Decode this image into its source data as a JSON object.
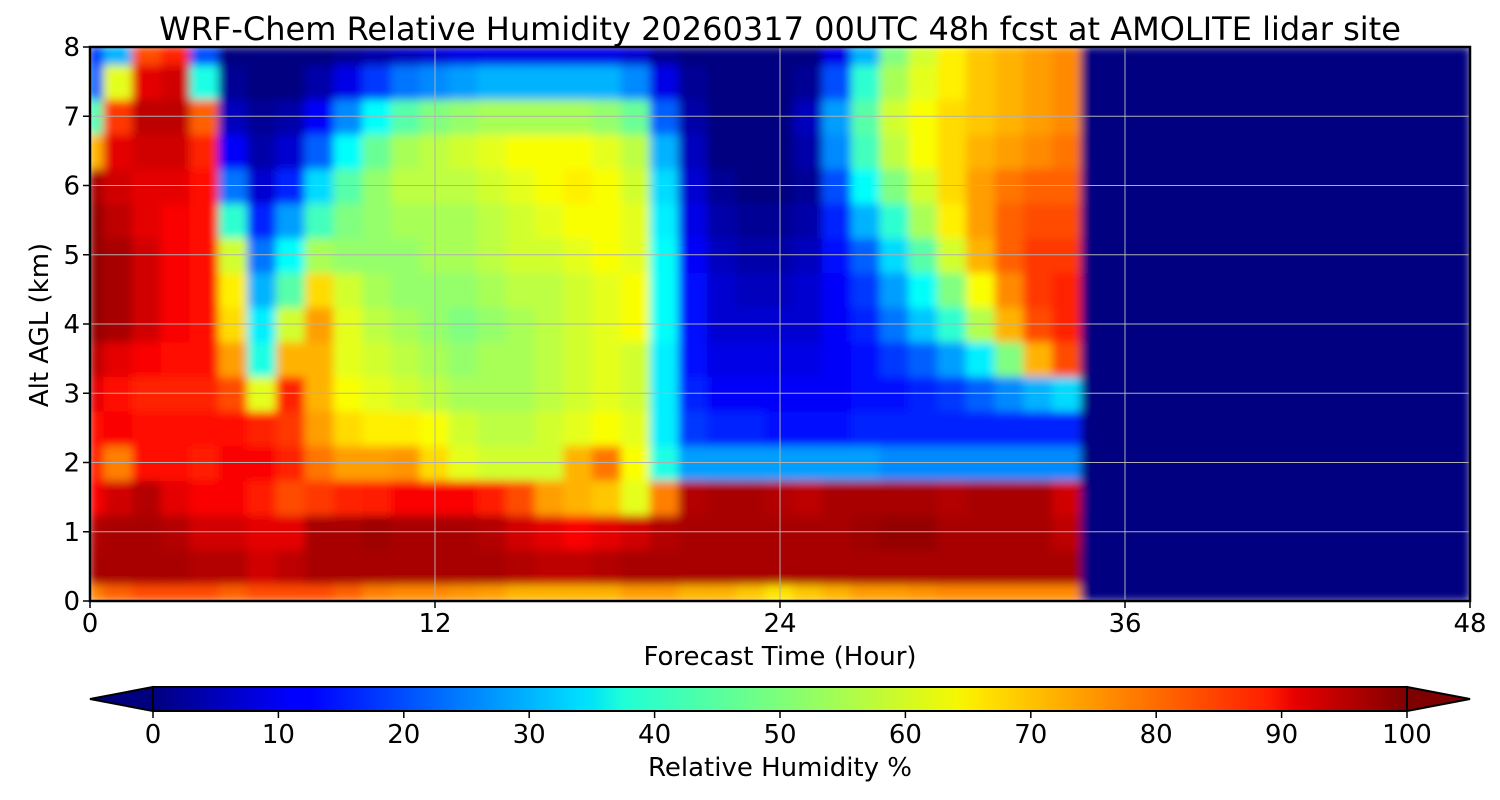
{
  "chart_data": {
    "type": "heatmap",
    "title": "WRF-Chem Relative Humidity 20260317 00UTC 48h fcst at AMOLITE lidar site",
    "xlabel": "Forecast Time (Hour)",
    "ylabel": "Alt AGL (km)",
    "xlim": [
      0,
      48
    ],
    "ylim": [
      0,
      8
    ],
    "xticks": [
      "0",
      "12",
      "24",
      "36",
      "48"
    ],
    "yticks": [
      "0",
      "1",
      "2",
      "3",
      "4",
      "5",
      "6",
      "7",
      "8"
    ],
    "grid": true,
    "colormap": "jet",
    "colorbar": {
      "label": "Relative Humidity %",
      "range": [
        0,
        100
      ],
      "ticks": [
        "0",
        "10",
        "20",
        "30",
        "40",
        "50",
        "60",
        "70",
        "80",
        "90",
        "100"
      ],
      "extend": "both",
      "orientation": "horizontal"
    },
    "x": [
      0,
      1,
      2,
      3,
      4,
      5,
      6,
      7,
      8,
      9,
      10,
      11,
      12,
      13,
      14,
      15,
      16,
      17,
      18,
      19,
      20,
      21,
      22,
      23,
      24,
      25,
      26,
      27,
      28,
      29,
      30,
      31,
      32,
      33,
      34,
      35,
      36,
      37,
      38,
      39,
      40,
      41,
      42,
      43,
      44,
      45,
      46,
      47,
      48
    ],
    "y": [
      0,
      0.5,
      1,
      1.5,
      2,
      2.5,
      3,
      3.5,
      4,
      4.5,
      5,
      5.5,
      6,
      6.5,
      7,
      7.5,
      8
    ],
    "z_note": "rows correspond to y (km), columns to x (hours); values are relative humidity in %",
    "z": [
      [
        75,
        78,
        80,
        80,
        80,
        78,
        80,
        80,
        80,
        78,
        75,
        74,
        74,
        73,
        72,
        70,
        70,
        70,
        70,
        72,
        72,
        70,
        70,
        68,
        65,
        68,
        70,
        72,
        72,
        73,
        74,
        74,
        74,
        74,
        74,
        0,
        0,
        0,
        0,
        0,
        0,
        0,
        0,
        0,
        0,
        0,
        0,
        0,
        0
      ],
      [
        96,
        96,
        96,
        96,
        95,
        95,
        92,
        94,
        96,
        96,
        96,
        96,
        96,
        96,
        96,
        95,
        94,
        94,
        95,
        96,
        96,
        96,
        96,
        96,
        96,
        96,
        96,
        96,
        96,
        96,
        96,
        96,
        96,
        96,
        96,
        0,
        0,
        0,
        0,
        0,
        0,
        0,
        0,
        0,
        0,
        0,
        0,
        0,
        0
      ],
      [
        95,
        96,
        96,
        95,
        92,
        92,
        90,
        90,
        96,
        96,
        97,
        96,
        96,
        96,
        95,
        92,
        90,
        88,
        90,
        92,
        95,
        96,
        96,
        96,
        96,
        96,
        96,
        97,
        98,
        98,
        96,
        96,
        96,
        96,
        94,
        0,
        0,
        0,
        0,
        0,
        0,
        0,
        0,
        0,
        0,
        0,
        0,
        0,
        0
      ],
      [
        88,
        92,
        95,
        90,
        88,
        88,
        85,
        80,
        82,
        84,
        85,
        88,
        88,
        88,
        85,
        80,
        72,
        70,
        68,
        60,
        75,
        95,
        96,
        96,
        95,
        94,
        96,
        96,
        96,
        96,
        95,
        96,
        96,
        96,
        92,
        0,
        0,
        0,
        0,
        0,
        0,
        0,
        0,
        0,
        0,
        0,
        0,
        0,
        0
      ],
      [
        85,
        75,
        86,
        86,
        85,
        88,
        88,
        84,
        76,
        72,
        72,
        73,
        66,
        60,
        58,
        58,
        58,
        70,
        76,
        62,
        40,
        28,
        28,
        28,
        28,
        28,
        28,
        28,
        26,
        26,
        26,
        26,
        26,
        26,
        26,
        0,
        0,
        0,
        0,
        0,
        0,
        0,
        0,
        0,
        0,
        0,
        0,
        0,
        0
      ],
      [
        86,
        88,
        86,
        86,
        86,
        86,
        84,
        82,
        72,
        66,
        64,
        64,
        62,
        58,
        56,
        56,
        58,
        60,
        62,
        60,
        36,
        18,
        16,
        16,
        14,
        14,
        14,
        16,
        16,
        16,
        16,
        16,
        16,
        16,
        16,
        0,
        0,
        0,
        0,
        0,
        0,
        0,
        0,
        0,
        0,
        0,
        0,
        0,
        0
      ],
      [
        90,
        86,
        84,
        84,
        84,
        80,
        60,
        84,
        70,
        62,
        60,
        58,
        56,
        54,
        54,
        54,
        56,
        58,
        60,
        58,
        36,
        16,
        12,
        12,
        12,
        12,
        12,
        14,
        14,
        16,
        18,
        22,
        26,
        30,
        34,
        0,
        0,
        0,
        0,
        0,
        0,
        0,
        0,
        0,
        0,
        0,
        0,
        0,
        0
      ],
      [
        94,
        90,
        88,
        86,
        86,
        72,
        40,
        70,
        70,
        60,
        58,
        56,
        54,
        52,
        54,
        54,
        56,
        58,
        60,
        58,
        36,
        14,
        10,
        10,
        10,
        10,
        12,
        14,
        18,
        22,
        28,
        36,
        50,
        70,
        80,
        0,
        0,
        0,
        0,
        0,
        0,
        0,
        0,
        0,
        0,
        0,
        0,
        0,
        0
      ],
      [
        98,
        96,
        92,
        88,
        86,
        66,
        36,
        58,
        72,
        60,
        56,
        54,
        52,
        50,
        52,
        54,
        56,
        58,
        60,
        62,
        38,
        14,
        8,
        8,
        8,
        8,
        12,
        16,
        24,
        32,
        42,
        55,
        70,
        80,
        84,
        0,
        0,
        0,
        0,
        0,
        0,
        0,
        0,
        0,
        0,
        0,
        0,
        0,
        0
      ],
      [
        98,
        96,
        92,
        88,
        86,
        64,
        30,
        46,
        66,
        58,
        54,
        52,
        52,
        52,
        54,
        56,
        56,
        58,
        60,
        62,
        38,
        14,
        8,
        6,
        6,
        8,
        12,
        18,
        28,
        38,
        50,
        62,
        74,
        82,
        84,
        0,
        0,
        0,
        0,
        0,
        0,
        0,
        0,
        0,
        0,
        0,
        0,
        0,
        0
      ],
      [
        98,
        96,
        92,
        88,
        86,
        58,
        24,
        38,
        54,
        52,
        52,
        52,
        54,
        54,
        56,
        58,
        58,
        60,
        62,
        60,
        38,
        12,
        6,
        4,
        4,
        6,
        14,
        22,
        34,
        46,
        58,
        70,
        78,
        82,
        82,
        0,
        0,
        0,
        0,
        0,
        0,
        0,
        0,
        0,
        0,
        0,
        0,
        0,
        0
      ],
      [
        98,
        94,
        90,
        88,
        86,
        42,
        16,
        28,
        44,
        50,
        52,
        54,
        54,
        54,
        56,
        58,
        60,
        62,
        62,
        60,
        36,
        10,
        4,
        2,
        2,
        4,
        16,
        30,
        42,
        54,
        64,
        72,
        78,
        80,
        80,
        0,
        0,
        0,
        0,
        0,
        0,
        0,
        0,
        0,
        0,
        0,
        0,
        0,
        0
      ],
      [
        96,
        92,
        90,
        90,
        86,
        24,
        8,
        16,
        34,
        46,
        52,
        56,
        56,
        56,
        58,
        60,
        62,
        64,
        62,
        58,
        34,
        8,
        2,
        0,
        0,
        2,
        20,
        38,
        50,
        58,
        66,
        72,
        76,
        78,
        78,
        0,
        0,
        0,
        0,
        0,
        0,
        0,
        0,
        0,
        0,
        0,
        0,
        0,
        0
      ],
      [
        70,
        90,
        92,
        92,
        84,
        12,
        4,
        8,
        22,
        38,
        48,
        54,
        56,
        58,
        60,
        62,
        62,
        62,
        60,
        56,
        30,
        6,
        0,
        0,
        0,
        4,
        26,
        44,
        56,
        62,
        66,
        70,
        72,
        74,
        76,
        0,
        0,
        0,
        0,
        0,
        0,
        0,
        0,
        0,
        0,
        0,
        0,
        0,
        0
      ],
      [
        45,
        82,
        94,
        94,
        78,
        6,
        2,
        4,
        12,
        26,
        38,
        46,
        50,
        52,
        54,
        54,
        54,
        54,
        52,
        48,
        22,
        4,
        0,
        0,
        0,
        6,
        28,
        46,
        58,
        62,
        66,
        68,
        70,
        72,
        74,
        0,
        0,
        0,
        0,
        0,
        0,
        0,
        0,
        0,
        0,
        0,
        0,
        0,
        0
      ],
      [
        22,
        60,
        90,
        92,
        40,
        2,
        0,
        0,
        4,
        10,
        18,
        24,
        26,
        28,
        30,
        30,
        30,
        30,
        30,
        26,
        10,
        2,
        0,
        0,
        0,
        2,
        20,
        42,
        54,
        60,
        64,
        68,
        70,
        72,
        74,
        0,
        0,
        0,
        0,
        0,
        0,
        0,
        0,
        0,
        0,
        0,
        0,
        0,
        0
      ],
      [
        18,
        30,
        80,
        84,
        20,
        0,
        0,
        0,
        0,
        2,
        4,
        6,
        8,
        10,
        10,
        10,
        10,
        10,
        10,
        8,
        2,
        0,
        0,
        0,
        0,
        0,
        10,
        30,
        50,
        58,
        64,
        68,
        70,
        72,
        74,
        0,
        0,
        0,
        0,
        0,
        0,
        0,
        0,
        0,
        0,
        0,
        0,
        0,
        0
      ]
    ]
  }
}
